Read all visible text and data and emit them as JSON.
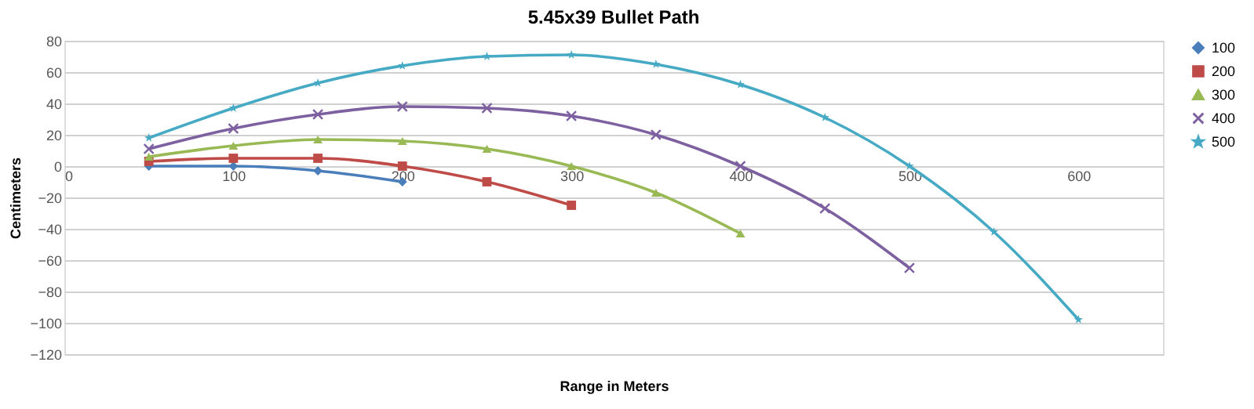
{
  "chart_data": {
    "type": "line",
    "title": "5.45x39 Bullet Path",
    "xlabel": "Range in Meters",
    "ylabel": "Centimeters",
    "xlim": [
      0,
      650
    ],
    "xticks": [
      0,
      100,
      200,
      300,
      400,
      500,
      600
    ],
    "ylim": [
      -120,
      80
    ],
    "yticks": [
      -120,
      -100,
      -80,
      -60,
      -40,
      -20,
      0,
      20,
      40,
      60,
      80
    ],
    "grid": "y",
    "legend": "right",
    "series": [
      {
        "name": "100",
        "color": "#4a7ebb",
        "marker": "diamond",
        "x": [
          50,
          100,
          150,
          200
        ],
        "values": [
          0,
          0,
          -3,
          -10
        ]
      },
      {
        "name": "200",
        "color": "#be4b48",
        "marker": "square",
        "x": [
          50,
          100,
          150,
          200,
          250,
          300
        ],
        "values": [
          3,
          5,
          5,
          0,
          -10,
          -25
        ]
      },
      {
        "name": "300",
        "color": "#98b954",
        "marker": "triangle",
        "x": [
          50,
          100,
          150,
          200,
          250,
          300,
          350,
          400
        ],
        "values": [
          6,
          13,
          17,
          16,
          11,
          0,
          -17,
          -43
        ]
      },
      {
        "name": "400",
        "color": "#7d60a0",
        "marker": "cross",
        "x": [
          50,
          100,
          150,
          200,
          250,
          300,
          350,
          400,
          450,
          500
        ],
        "values": [
          11,
          24,
          33,
          38,
          37,
          32,
          20,
          0,
          -27,
          -65
        ]
      },
      {
        "name": "500",
        "color": "#46aac5",
        "marker": "star",
        "x": [
          50,
          100,
          150,
          200,
          250,
          300,
          350,
          400,
          450,
          500,
          550,
          600
        ],
        "values": [
          18,
          37,
          53,
          64,
          70,
          71,
          65,
          52,
          31,
          0,
          -42,
          -98
        ]
      }
    ]
  }
}
